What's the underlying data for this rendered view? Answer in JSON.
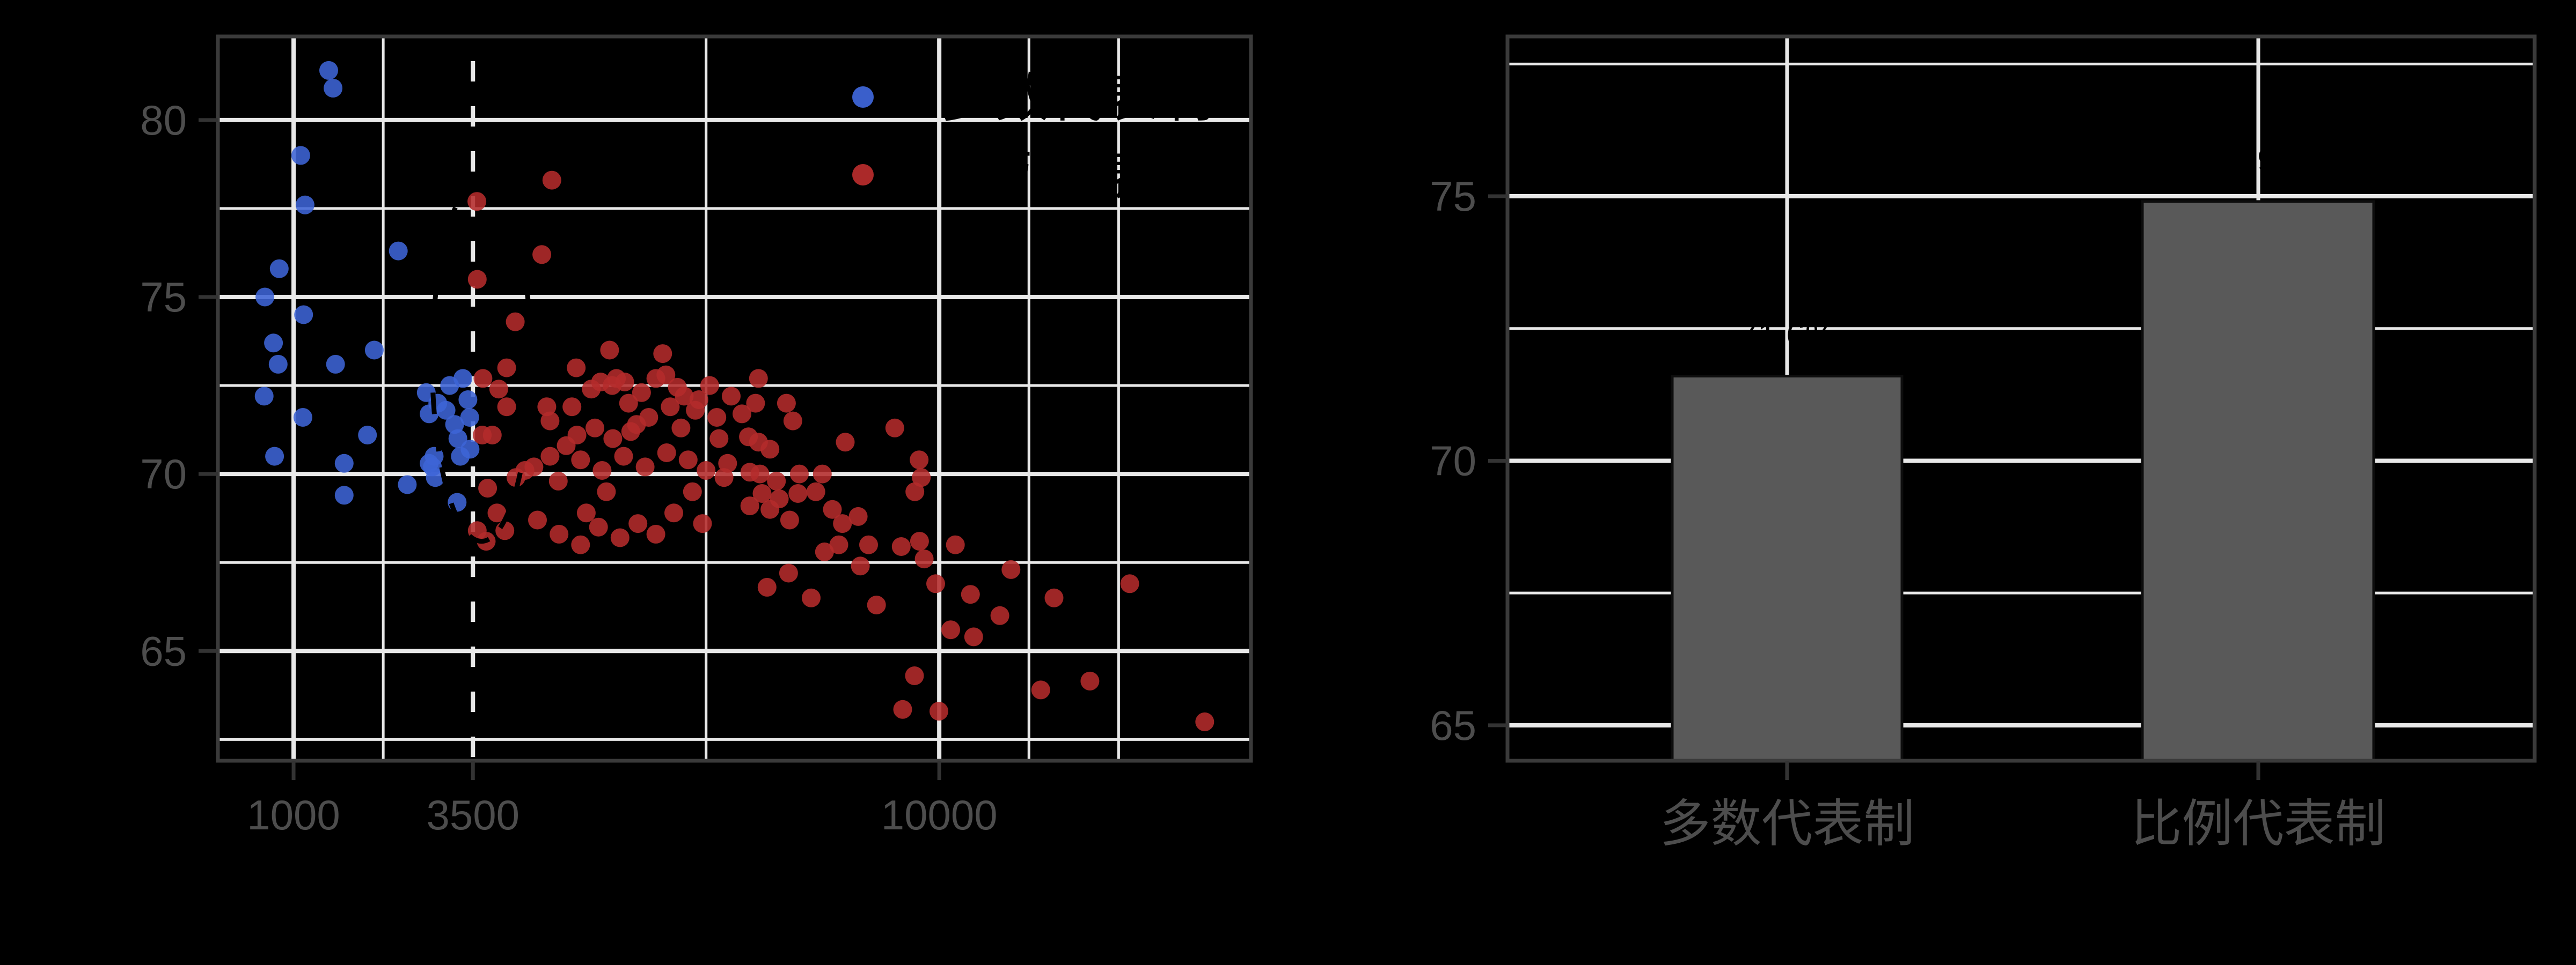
{
  "figure": {
    "background": "#000000",
    "panel_border_color": "#3a3a3a",
    "grid_color": "#e8e8e8",
    "tick_color": "#333333",
    "tick_label_color": "#4d4d4d",
    "annotation_color": "#000000"
  },
  "chart_data": [
    {
      "type": "scatter",
      "title": "",
      "xlabel": "",
      "ylabel": "",
      "x_tick_labels": [
        "1000",
        "3500",
        "10000"
      ],
      "x_ticks": [
        1000,
        3500,
        10000
      ],
      "x_minor": [
        2250,
        6750,
        11250,
        12500
      ],
      "y_tick_labels": [
        "80",
        "75",
        "70",
        "65"
      ],
      "y_ticks": [
        80,
        75,
        70,
        65
      ],
      "y_minor": [
        77.5,
        72.5,
        67.5,
        62.5
      ],
      "x_range": [
        -55,
        14345
      ],
      "y_range": [
        61.9,
        82.36
      ],
      "grid": true,
      "legend_position": "inside-top-right",
      "annotations": {
        "dashed_vline_x": 3500,
        "dashed_ellipse": {
          "cx": 3620,
          "cy": 73.2,
          "rx": 688,
          "ry": 5.1
        }
      },
      "series": [
        {
          "name": "多数代表制",
          "color": "#3D64D6",
          "points": [
            [
              1490,
              81.4
            ],
            [
              1550,
              80.9
            ],
            [
              1100,
              79.0
            ],
            [
              1160,
              77.6
            ],
            [
              2460,
              76.3
            ],
            [
              800,
              75.8
            ],
            [
              600,
              75.0
            ],
            [
              1140,
              74.5
            ],
            [
              720,
              73.7
            ],
            [
              785,
              73.1
            ],
            [
              1585,
              73.1
            ],
            [
              2125,
              73.5
            ],
            [
              590,
              72.2
            ],
            [
              1130,
              71.6
            ],
            [
              2030,
              71.1
            ],
            [
              735,
              70.5
            ],
            [
              1705,
              70.3
            ],
            [
              1705,
              69.4
            ],
            [
              2585,
              69.7
            ],
            [
              2975,
              69.9
            ],
            [
              3280,
              69.2
            ],
            [
              2850,
              72.3
            ],
            [
              3175,
              72.5
            ],
            [
              3360,
              72.7
            ],
            [
              3430,
              72.1
            ],
            [
              3125,
              71.8
            ],
            [
              2890,
              71.7
            ],
            [
              3245,
              71.4
            ],
            [
              3455,
              71.6
            ],
            [
              3010,
              72.0
            ],
            [
              3290,
              71.0
            ],
            [
              3460,
              70.7
            ],
            [
              2960,
              70.5
            ],
            [
              3325,
              70.5
            ],
            [
              2935,
              70.2
            ],
            [
              2890,
              70.3
            ]
          ]
        },
        {
          "name": "比例代表制",
          "color": "#B42B2B",
          "points": [
            [
              3555,
              77.7
            ],
            [
              4600,
              78.3
            ],
            [
              3560,
              75.5
            ],
            [
              4460,
              76.2
            ],
            [
              4090,
              74.3
            ],
            [
              3970,
              73.0
            ],
            [
              3860,
              72.4
            ],
            [
              3970,
              71.9
            ],
            [
              3770,
              71.1
            ],
            [
              4575,
              71.5
            ],
            [
              4575,
              70.5
            ],
            [
              4690,
              69.8
            ],
            [
              4940,
              73.0
            ],
            [
              5405,
              73.5
            ],
            [
              5615,
              72.6
            ],
            [
              5780,
              71.4
            ],
            [
              6145,
              73.4
            ],
            [
              6190,
              72.8
            ],
            [
              6445,
              72.2
            ],
            [
              6400,
              71.3
            ],
            [
              6930,
              71.0
            ],
            [
              7050,
              70.3
            ],
            [
              4530,
              71.9
            ],
            [
              4880,
              71.9
            ],
            [
              4950,
              71.1
            ],
            [
              5280,
              72.6
            ],
            [
              5440,
              72.5
            ],
            [
              5670,
              72.0
            ],
            [
              3640,
              72.7
            ],
            [
              3630,
              71.1
            ],
            [
              5150,
              72.4
            ],
            [
              5500,
              72.7
            ],
            [
              5850,
              72.3
            ],
            [
              6050,
              72.7
            ],
            [
              6350,
              72.45
            ],
            [
              6650,
              72.1
            ],
            [
              6800,
              72.5
            ],
            [
              7100,
              72.2
            ],
            [
              7250,
              71.7
            ],
            [
              6900,
              71.6
            ],
            [
              6600,
              71.8
            ],
            [
              6250,
              71.9
            ],
            [
              5950,
              71.6
            ],
            [
              5700,
              71.2
            ],
            [
              5450,
              71.0
            ],
            [
              5200,
              71.3
            ],
            [
              4800,
              70.8
            ],
            [
              5000,
              70.4
            ],
            [
              5300,
              70.1
            ],
            [
              5600,
              70.5
            ],
            [
              5900,
              70.2
            ],
            [
              6200,
              70.6
            ],
            [
              6500,
              70.4
            ],
            [
              6750,
              70.1
            ],
            [
              7000,
              69.9
            ],
            [
              4350,
              70.2
            ],
            [
              4100,
              69.9
            ],
            [
              6560,
              69.5
            ],
            [
              5360,
              69.5
            ],
            [
              5080,
              68.9
            ],
            [
              3835,
              68.9
            ],
            [
              3945,
              68.4
            ],
            [
              3560,
              68.4
            ],
            [
              3685,
              68.1
            ],
            [
              4225,
              70.1
            ],
            [
              3705,
              69.6
            ],
            [
              4400,
              68.7
            ],
            [
              4700,
              68.3
            ],
            [
              5000,
              68.0
            ],
            [
              5250,
              68.5
            ],
            [
              5550,
              68.2
            ],
            [
              5800,
              68.6
            ],
            [
              6050,
              68.3
            ],
            [
              6300,
              68.9
            ],
            [
              6700,
              68.6
            ],
            [
              7480,
              72.7
            ],
            [
              7440,
              72.0
            ],
            [
              7870,
              72.0
            ],
            [
              7960,
              71.5
            ],
            [
              7480,
              70.9
            ],
            [
              7640,
              70.7
            ],
            [
              7340,
              71.05
            ],
            [
              8690,
              70.9
            ],
            [
              9380,
              71.3
            ],
            [
              9720,
              70.4
            ],
            [
              9750,
              69.9
            ],
            [
              9660,
              69.5
            ],
            [
              7360,
              70.05
            ],
            [
              7500,
              70.0
            ],
            [
              7730,
              69.8
            ],
            [
              8050,
              70.0
            ],
            [
              8370,
              70.0
            ],
            [
              7530,
              69.45
            ],
            [
              7770,
              69.3
            ],
            [
              8030,
              69.45
            ],
            [
              8280,
              69.5
            ],
            [
              7360,
              69.1
            ],
            [
              7640,
              69.0
            ],
            [
              7915,
              68.7
            ],
            [
              8510,
              69.0
            ],
            [
              8650,
              68.6
            ],
            [
              8870,
              68.8
            ],
            [
              8600,
              68.0
            ],
            [
              9015,
              68.0
            ],
            [
              9470,
              67.95
            ],
            [
              9725,
              68.1
            ],
            [
              10225,
              68.0
            ],
            [
              9790,
              67.6
            ],
            [
              9950,
              66.9
            ],
            [
              10160,
              65.6
            ],
            [
              10435,
              66.6
            ],
            [
              10480,
              65.4
            ],
            [
              10845,
              66.0
            ],
            [
              8215,
              66.5
            ],
            [
              9125,
              66.3
            ],
            [
              9655,
              64.3
            ],
            [
              9490,
              63.35
            ],
            [
              9995,
              63.3
            ],
            [
              11415,
              63.9
            ],
            [
              12100,
              64.15
            ],
            [
              12655,
              66.9
            ],
            [
              13700,
              63.0
            ],
            [
              11000,
              67.3
            ],
            [
              11600,
              66.5
            ],
            [
              8900,
              67.4
            ],
            [
              8400,
              67.8
            ],
            [
              7900,
              67.2
            ],
            [
              7600,
              66.8
            ]
          ]
        }
      ]
    },
    {
      "type": "bar",
      "title": "",
      "xlabel": "",
      "ylabel": "",
      "categories": [
        "多数代表制",
        "比例代表制"
      ],
      "values": [
        71.6,
        74.9
      ],
      "bar_labels": [
        "71.6%",
        "74.9%"
      ],
      "bar_fill": "#595959",
      "bar_stroke": "#0d0d0d",
      "y_tick_labels": [
        "75",
        "70",
        "65"
      ],
      "y_ticks": [
        75,
        70,
        65
      ],
      "y_minor": [
        77.5,
        72.5,
        67.5
      ],
      "y_range": [
        64.33,
        78.02
      ],
      "grid": true
    }
  ]
}
